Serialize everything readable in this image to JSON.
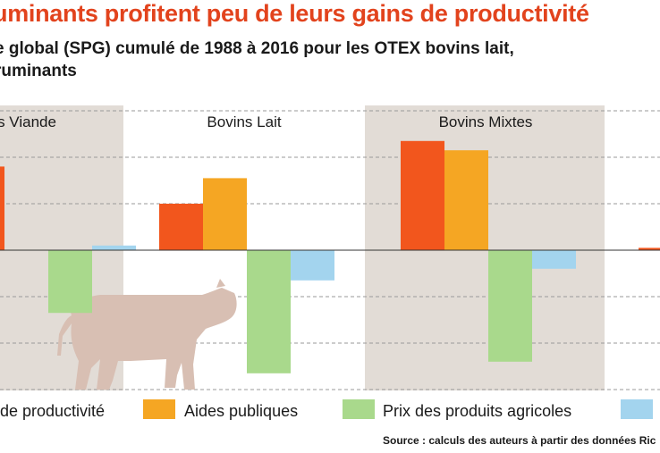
{
  "title": "uminants profitent peu de leurs gains de productivité",
  "subtitle": {
    "line1": "e global (SPG) cumulé de 1988 à 2016 pour les OTEX bovins lait,",
    "line2": "ruminants"
  },
  "source": "Source : calculs des auteurs à partir des données Ric",
  "chart_data": {
    "type": "bar",
    "categories": [
      "s Viande",
      "Bovins Lait",
      "Bovins Mixtes",
      ""
    ],
    "series": [
      {
        "name": "de productivité",
        "color": "#f2561d",
        "values": [
          1.8,
          1.0,
          2.35,
          0.05
        ]
      },
      {
        "name": "Aides publiques",
        "color": "#f5a623",
        "values": [
          null,
          1.55,
          2.15,
          null
        ]
      },
      {
        "name": "Prix des produits agricoles",
        "color": "#a9d98c",
        "values": [
          -1.35,
          -2.65,
          -2.4,
          null
        ]
      },
      {
        "name": "",
        "color": "#a3d4ee",
        "values": [
          0.1,
          -0.65,
          -0.4,
          null
        ]
      }
    ],
    "ylim": [
      -3.0,
      3.0
    ],
    "grid": true,
    "legend_position": "bottom"
  },
  "icons": {
    "decoration": "cow-silhouette-icon"
  }
}
